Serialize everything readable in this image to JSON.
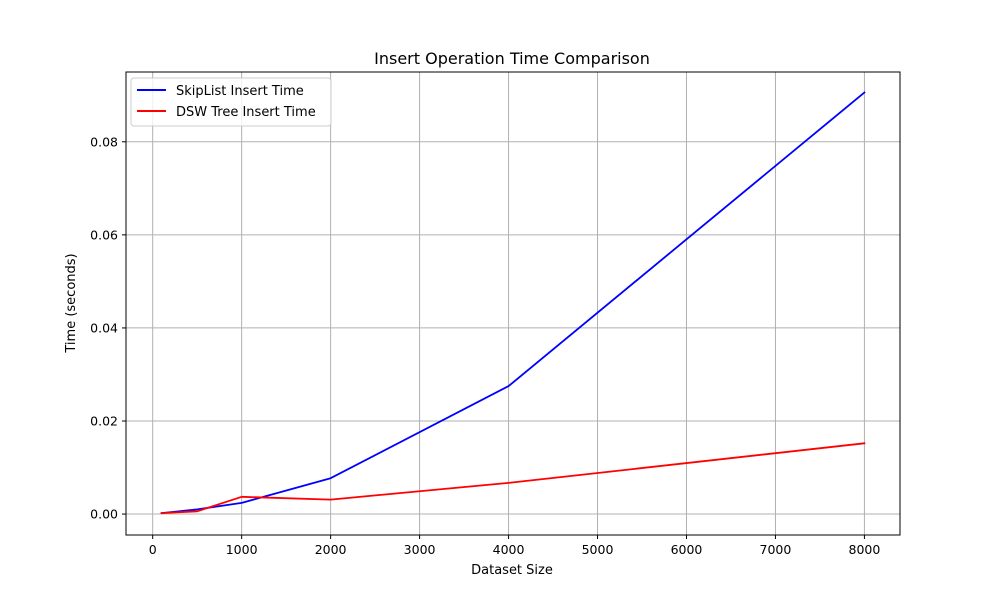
{
  "chart_data": {
    "type": "line",
    "title": "Insert Operation Time Comparison",
    "xlabel": "Dataset Size",
    "ylabel": "Time (seconds)",
    "xlim": [
      -300,
      8400
    ],
    "ylim": [
      -0.0045,
      0.095
    ],
    "xticks": [
      0,
      1000,
      2000,
      3000,
      4000,
      5000,
      6000,
      7000,
      8000
    ],
    "xtick_labels": [
      "0",
      "1000",
      "2000",
      "3000",
      "4000",
      "5000",
      "6000",
      "7000",
      "8000"
    ],
    "yticks": [
      0.0,
      0.02,
      0.04,
      0.06,
      0.08
    ],
    "ytick_labels": [
      "0.00",
      "0.02",
      "0.04",
      "0.06",
      "0.08"
    ],
    "grid": true,
    "legend_position": "top-left",
    "x": [
      100,
      500,
      1000,
      2000,
      4000,
      8000
    ],
    "series": [
      {
        "name": "SkipList Insert Time",
        "color": "#0000ff",
        "values": [
          0.0002,
          0.001,
          0.0024,
          0.0077,
          0.0275,
          0.0906
        ]
      },
      {
        "name": "DSW Tree Insert Time",
        "color": "#ff0000",
        "values": [
          0.0002,
          0.0006,
          0.0037,
          0.0031,
          0.0067,
          0.0152
        ]
      }
    ]
  }
}
